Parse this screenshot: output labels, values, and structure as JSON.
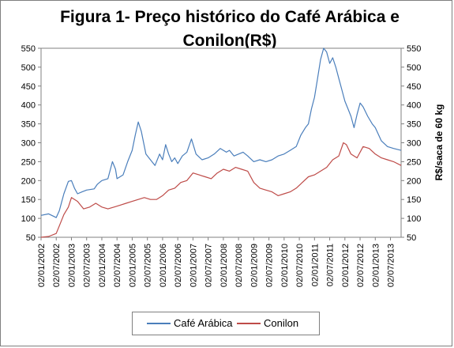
{
  "chart_data": {
    "type": "line",
    "title": "Figura 1- Preço histórico do Café Arábica e Conilon(R$)",
    "ylabel_right": "R$/saca de 60 kg",
    "ylim": [
      50,
      550
    ],
    "yticks": [
      50,
      100,
      150,
      200,
      250,
      300,
      350,
      400,
      450,
      500,
      550
    ],
    "ytick_labels": [
      "50",
      "100",
      "150",
      "200",
      "250",
      "300",
      "350",
      "400",
      "450",
      "500",
      "550"
    ],
    "xlim": [
      2002.0,
      2013.85
    ],
    "xticks": [
      2002.0,
      2002.5,
      2003.0,
      2003.5,
      2004.0,
      2004.5,
      2005.0,
      2005.5,
      2006.0,
      2006.5,
      2007.0,
      2007.5,
      2008.0,
      2008.5,
      2009.0,
      2009.5,
      2010.0,
      2010.5,
      2011.0,
      2011.5,
      2012.0,
      2012.5,
      2013.0,
      2013.5
    ],
    "xtick_labels": [
      "02/01/2002",
      "02/07/2002",
      "02/01/2003",
      "02/07/2003",
      "02/01/2004",
      "02/07/2004",
      "02/01/2005",
      "02/07/2005",
      "02/01/2006",
      "02/07/2006",
      "02/01/2007",
      "02/07/2007",
      "02/01/2008",
      "02/07/2008",
      "02/01/2009",
      "02/07/2009",
      "02/01/2010",
      "02/07/2010",
      "02/01/2011",
      "02/07/2011",
      "02/01/2012",
      "02/07/2012",
      "02/01/2013",
      "02/07/2013"
    ],
    "legend_position": "bottom",
    "grid": false,
    "series": [
      {
        "name": "Café Arábica",
        "color": "#4a7ebb",
        "x": [
          2002.0,
          2002.25,
          2002.5,
          2002.6,
          2002.75,
          2002.9,
          2003.0,
          2003.1,
          2003.2,
          2003.35,
          2003.5,
          2003.75,
          2003.85,
          2004.0,
          2004.2,
          2004.35,
          2004.45,
          2004.5,
          2004.7,
          2004.85,
          2005.0,
          2005.1,
          2005.2,
          2005.3,
          2005.45,
          2005.6,
          2005.75,
          2005.9,
          2006.0,
          2006.1,
          2006.2,
          2006.3,
          2006.4,
          2006.5,
          2006.65,
          2006.8,
          2006.95,
          2007.1,
          2007.3,
          2007.5,
          2007.7,
          2007.9,
          2008.1,
          2008.2,
          2008.35,
          2008.5,
          2008.65,
          2008.8,
          2009.0,
          2009.2,
          2009.4,
          2009.6,
          2009.8,
          2010.0,
          2010.2,
          2010.4,
          2010.55,
          2010.7,
          2010.8,
          2010.9,
          2011.0,
          2011.1,
          2011.2,
          2011.3,
          2011.4,
          2011.5,
          2011.6,
          2011.7,
          2011.8,
          2011.9,
          2012.0,
          2012.1,
          2012.2,
          2012.3,
          2012.4,
          2012.5,
          2012.6,
          2012.75,
          2012.9,
          2013.0,
          2013.2,
          2013.4,
          2013.6,
          2013.85
        ],
        "values": [
          108,
          112,
          102,
          120,
          165,
          198,
          200,
          180,
          165,
          170,
          175,
          178,
          190,
          200,
          205,
          250,
          230,
          205,
          215,
          250,
          280,
          320,
          355,
          330,
          270,
          255,
          240,
          270,
          255,
          295,
          270,
          250,
          260,
          245,
          265,
          275,
          310,
          270,
          255,
          260,
          270,
          285,
          275,
          280,
          265,
          270,
          275,
          265,
          250,
          255,
          250,
          255,
          265,
          270,
          280,
          290,
          320,
          340,
          350,
          390,
          420,
          470,
          520,
          550,
          540,
          510,
          525,
          500,
          470,
          440,
          410,
          390,
          370,
          340,
          375,
          405,
          395,
          370,
          350,
          340,
          305,
          290,
          285,
          280
        ]
      },
      {
        "name": "Conilon",
        "color": "#be4b48",
        "x": [
          2002.0,
          2002.25,
          2002.5,
          2002.6,
          2002.75,
          2002.9,
          2003.0,
          2003.2,
          2003.4,
          2003.6,
          2003.8,
          2004.0,
          2004.2,
          2004.4,
          2004.6,
          2004.8,
          2005.0,
          2005.2,
          2005.4,
          2005.6,
          2005.8,
          2006.0,
          2006.2,
          2006.4,
          2006.6,
          2006.8,
          2007.0,
          2007.2,
          2007.4,
          2007.6,
          2007.8,
          2008.0,
          2008.2,
          2008.4,
          2008.6,
          2008.8,
          2009.0,
          2009.2,
          2009.4,
          2009.6,
          2009.8,
          2010.0,
          2010.2,
          2010.4,
          2010.6,
          2010.8,
          2011.0,
          2011.2,
          2011.4,
          2011.6,
          2011.8,
          2011.95,
          2012.05,
          2012.2,
          2012.4,
          2012.6,
          2012.8,
          2013.0,
          2013.2,
          2013.4,
          2013.6,
          2013.85
        ],
        "values": [
          50,
          52,
          60,
          80,
          110,
          130,
          155,
          145,
          125,
          130,
          140,
          130,
          125,
          130,
          135,
          140,
          145,
          150,
          155,
          150,
          150,
          160,
          175,
          180,
          195,
          200,
          220,
          215,
          210,
          205,
          220,
          230,
          225,
          235,
          230,
          225,
          195,
          180,
          175,
          170,
          160,
          165,
          170,
          180,
          195,
          210,
          215,
          225,
          235,
          255,
          265,
          300,
          295,
          270,
          260,
          290,
          285,
          270,
          260,
          255,
          250,
          240
        ]
      }
    ]
  }
}
